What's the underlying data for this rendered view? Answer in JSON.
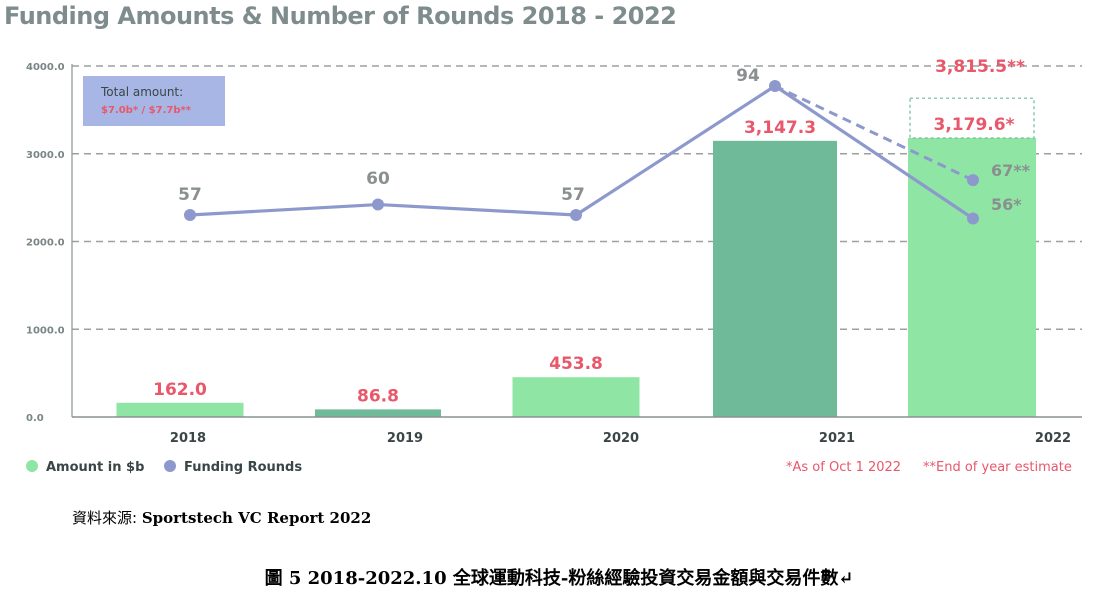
{
  "chart_data": {
    "type": "bar",
    "title": "Funding Amounts & Number of Rounds 2018 - 2022",
    "categories": [
      "2018",
      "2019",
      "2020",
      "2021",
      "2022"
    ],
    "ylim": [
      0,
      4000
    ],
    "yticks": [
      "0.0",
      "1000.0",
      "2000.0",
      "3000.0",
      "4000.0"
    ],
    "grid": true,
    "series": [
      {
        "name": "Amount in $b",
        "type": "bar",
        "color": "#8fe5a4",
        "values": [
          162.0,
          86.8,
          453.8,
          3147.3,
          3179.6
        ],
        "labels": [
          "162.0",
          "86.8",
          "453.8",
          "3,147.3",
          "3,179.6*"
        ],
        "bar_colors": [
          "#8fe5a4",
          "#6fba99",
          "#8fe5a4",
          "#6fba99",
          "#8fe5a4"
        ],
        "estimate": {
          "category": "2022",
          "value": 3815.5,
          "label": "3,815.5**"
        }
      },
      {
        "name": "Funding Rounds",
        "type": "line",
        "color": "#8d99cc",
        "values": [
          57,
          60,
          57,
          94,
          56
        ],
        "labels": [
          "57",
          "60",
          "57",
          "94",
          "56*"
        ],
        "estimate": {
          "category": "2022",
          "value": 67,
          "label": "67**"
        }
      }
    ],
    "legend_position": "bottom-left",
    "annotation_box": {
      "title": "Total amount:",
      "value": "$7.0b* / $7.7b**"
    },
    "notes": [
      "*As of Oct 1 2022",
      "**End of year estimate"
    ]
  },
  "source": {
    "label": "資料來源: ",
    "value": "Sportstech VC Report 2022"
  },
  "caption": "圖 5 2018-2022.10 全球運動科技-粉絲經驗投資交易金額與交易件數↵"
}
